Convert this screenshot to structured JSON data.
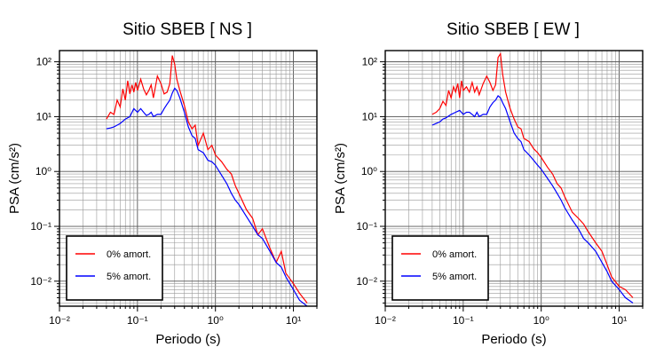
{
  "chart_data": [
    {
      "type": "line",
      "title": "Sitio SBEB [ NS ]",
      "xlabel": "Periodo (s)",
      "ylabel": "PSA (cm/s²)",
      "xscale": "log",
      "yscale": "log",
      "xlim": [
        0.01,
        20
      ],
      "ylim": [
        0.0035,
        160
      ],
      "xticks": [
        0.01,
        0.1,
        1,
        10
      ],
      "xtick_labels": [
        "10⁻²",
        "10⁻¹",
        "10⁰",
        "10¹"
      ],
      "yticks": [
        0.01,
        0.1,
        1,
        10,
        100
      ],
      "ytick_labels": [
        "10⁻²",
        "10⁻¹",
        "10⁰",
        "10¹",
        "10²"
      ],
      "grid": true,
      "legend_position": "bottom-left",
      "series": [
        {
          "name": "0% amort.",
          "color": "#ff0000",
          "x": [
            0.04,
            0.045,
            0.05,
            0.055,
            0.06,
            0.065,
            0.07,
            0.075,
            0.08,
            0.085,
            0.09,
            0.095,
            0.1,
            0.11,
            0.12,
            0.13,
            0.14,
            0.15,
            0.16,
            0.18,
            0.2,
            0.22,
            0.24,
            0.26,
            0.28,
            0.3,
            0.32,
            0.35,
            0.4,
            0.45,
            0.5,
            0.55,
            0.6,
            0.7,
            0.8,
            0.9,
            1.0,
            1.2,
            1.4,
            1.6,
            1.8,
            2.0,
            2.5,
            3.0,
            3.5,
            4.0,
            5.0,
            6.0,
            7.0,
            8.0,
            10.0,
            12.0,
            15.0
          ],
          "y": [
            9.0,
            12.0,
            11.0,
            20.0,
            15.0,
            32.0,
            20.0,
            45.0,
            26.0,
            38.0,
            28.0,
            42.0,
            30.0,
            48.0,
            32.0,
            25.0,
            30.0,
            38.0,
            22.0,
            55.0,
            40.0,
            26.0,
            28.0,
            40.0,
            130.0,
            90.0,
            48.0,
            30.0,
            16.0,
            8.0,
            6.0,
            7.0,
            3.0,
            5.0,
            2.5,
            3.0,
            2.0,
            1.5,
            1.1,
            0.9,
            0.55,
            0.4,
            0.2,
            0.14,
            0.07,
            0.09,
            0.04,
            0.022,
            0.035,
            0.014,
            0.009,
            0.006,
            0.004
          ]
        },
        {
          "name": "5% amort.",
          "color": "#0000ff",
          "x": [
            0.04,
            0.045,
            0.05,
            0.055,
            0.06,
            0.07,
            0.08,
            0.09,
            0.1,
            0.11,
            0.12,
            0.13,
            0.14,
            0.15,
            0.16,
            0.18,
            0.2,
            0.22,
            0.24,
            0.26,
            0.28,
            0.3,
            0.32,
            0.35,
            0.4,
            0.45,
            0.5,
            0.55,
            0.6,
            0.7,
            0.8,
            0.9,
            1.0,
            1.2,
            1.4,
            1.6,
            1.8,
            2.0,
            2.5,
            3.0,
            3.5,
            4.0,
            5.0,
            6.0,
            7.0,
            8.0,
            10.0,
            12.0,
            15.0
          ],
          "y": [
            6.0,
            6.2,
            6.5,
            7.0,
            7.5,
            9.0,
            10.0,
            14.0,
            12.0,
            14.0,
            12.0,
            10.5,
            11.0,
            12.0,
            10.0,
            11.0,
            11.0,
            14.0,
            17.0,
            20.0,
            27.0,
            33.0,
            30.0,
            22.0,
            12.0,
            6.5,
            4.5,
            4.0,
            2.5,
            2.2,
            1.6,
            1.5,
            1.3,
            0.85,
            0.6,
            0.4,
            0.3,
            0.25,
            0.15,
            0.1,
            0.07,
            0.06,
            0.035,
            0.022,
            0.018,
            0.012,
            0.007,
            0.0045,
            0.0035
          ]
        }
      ]
    },
    {
      "type": "line",
      "title": "Sitio SBEB [ EW ]",
      "xlabel": "Periodo (s)",
      "ylabel": "PSA (cm/s²)",
      "xscale": "log",
      "yscale": "log",
      "xlim": [
        0.01,
        20
      ],
      "ylim": [
        0.0035,
        160
      ],
      "xticks": [
        0.01,
        0.1,
        1,
        10
      ],
      "xtick_labels": [
        "10⁻²",
        "10⁻¹",
        "10⁰",
        "10¹"
      ],
      "yticks": [
        0.01,
        0.1,
        1,
        10,
        100
      ],
      "ytick_labels": [
        "10⁻²",
        "10⁻¹",
        "10⁰",
        "10¹",
        "10²"
      ],
      "grid": true,
      "legend_position": "bottom-left",
      "series": [
        {
          "name": "0% amort.",
          "color": "#ff0000",
          "x": [
            0.04,
            0.045,
            0.05,
            0.055,
            0.06,
            0.065,
            0.07,
            0.075,
            0.08,
            0.085,
            0.09,
            0.095,
            0.1,
            0.11,
            0.12,
            0.13,
            0.14,
            0.15,
            0.16,
            0.18,
            0.2,
            0.22,
            0.24,
            0.26,
            0.28,
            0.3,
            0.32,
            0.35,
            0.4,
            0.45,
            0.5,
            0.55,
            0.6,
            0.7,
            0.8,
            0.9,
            1.0,
            1.2,
            1.4,
            1.6,
            1.8,
            2.0,
            2.5,
            3.0,
            3.5,
            4.0,
            5.0,
            6.0,
            7.0,
            8.0,
            10.0,
            12.0,
            15.0
          ],
          "y": [
            11.0,
            12.0,
            14.0,
            19.0,
            16.0,
            30.0,
            22.0,
            35.0,
            28.0,
            40.0,
            22.0,
            45.0,
            30.0,
            35.0,
            28.0,
            42.0,
            28.0,
            35.0,
            25.0,
            40.0,
            55.0,
            42.0,
            30.0,
            38.0,
            120.0,
            140.0,
            60.0,
            28.0,
            14.0,
            9.0,
            6.5,
            6.0,
            4.0,
            3.5,
            2.6,
            2.2,
            1.8,
            1.2,
            0.9,
            0.6,
            0.5,
            0.35,
            0.18,
            0.14,
            0.11,
            0.08,
            0.05,
            0.035,
            0.02,
            0.012,
            0.008,
            0.007,
            0.005
          ]
        },
        {
          "name": "5% amort.",
          "color": "#0000ff",
          "x": [
            0.04,
            0.045,
            0.05,
            0.055,
            0.06,
            0.07,
            0.08,
            0.09,
            0.1,
            0.11,
            0.12,
            0.13,
            0.14,
            0.15,
            0.16,
            0.18,
            0.2,
            0.22,
            0.24,
            0.26,
            0.28,
            0.3,
            0.32,
            0.35,
            0.4,
            0.45,
            0.5,
            0.55,
            0.6,
            0.7,
            0.8,
            0.9,
            1.0,
            1.2,
            1.4,
            1.6,
            1.8,
            2.0,
            2.5,
            3.0,
            3.5,
            4.0,
            5.0,
            6.0,
            7.0,
            8.0,
            10.0,
            12.0,
            15.0
          ],
          "y": [
            7.0,
            7.5,
            8.0,
            9.0,
            9.5,
            11.0,
            12.0,
            13.0,
            11.0,
            12.0,
            12.0,
            11.0,
            10.0,
            12.0,
            10.0,
            11.0,
            11.0,
            15.0,
            18.0,
            20.0,
            24.0,
            22.0,
            18.0,
            14.0,
            8.0,
            5.0,
            4.0,
            3.5,
            2.5,
            2.0,
            1.6,
            1.3,
            1.1,
            0.75,
            0.55,
            0.4,
            0.3,
            0.22,
            0.13,
            0.09,
            0.06,
            0.05,
            0.035,
            0.022,
            0.015,
            0.01,
            0.007,
            0.005,
            0.004
          ]
        }
      ]
    }
  ]
}
